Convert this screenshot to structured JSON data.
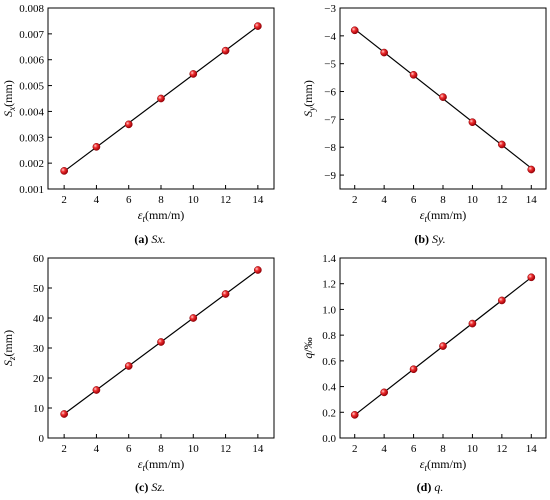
{
  "chart_data": [
    {
      "type": "scatter",
      "caption_letter": "(a)",
      "caption_text": "Sx.",
      "xlabel": "εt(mm/m)",
      "ylabel": "Sx(mm)",
      "xlim": [
        1,
        15
      ],
      "ylim": [
        0.001,
        0.008
      ],
      "xticks": [
        2,
        4,
        6,
        8,
        10,
        12,
        14
      ],
      "yticks": [
        0.001,
        0.002,
        0.003,
        0.004,
        0.005,
        0.006,
        0.007,
        0.008
      ],
      "ytick_labels": [
        "0.001",
        "0.002",
        "0.003",
        "0.004",
        "0.005",
        "0.006",
        "0.007",
        "0.008"
      ],
      "x": [
        2,
        4,
        6,
        8,
        10,
        12,
        14
      ],
      "y": [
        0.0017,
        0.00263,
        0.0035,
        0.0045,
        0.00545,
        0.00635,
        0.0073
      ],
      "trendline": true,
      "marker_color": "#e8141e",
      "line_color": "#000000"
    },
    {
      "type": "scatter",
      "caption_letter": "(b)",
      "caption_text": "Sy.",
      "xlabel": "εt(mm/m)",
      "ylabel": "Sy(mm)",
      "xlim": [
        1,
        15
      ],
      "ylim": [
        -9.5,
        -3
      ],
      "xticks": [
        2,
        4,
        6,
        8,
        10,
        12,
        14
      ],
      "yticks": [
        -3,
        -4,
        -5,
        -6,
        -7,
        -8,
        -9
      ],
      "ytick_labels": [
        "−3",
        "−4",
        "−5",
        "−6",
        "−7",
        "−8",
        "−9"
      ],
      "x": [
        2,
        4,
        6,
        8,
        10,
        12,
        14
      ],
      "y": [
        -3.8,
        -4.6,
        -5.4,
        -6.2,
        -7.1,
        -7.9,
        -8.8
      ],
      "trendline": true,
      "marker_color": "#e8141e",
      "line_color": "#000000"
    },
    {
      "type": "scatter",
      "caption_letter": "(c)",
      "caption_text": "Sz.",
      "xlabel": "εt(mm/m)",
      "ylabel": "Sz(mm)",
      "xlim": [
        1,
        15
      ],
      "ylim": [
        0,
        60
      ],
      "xticks": [
        2,
        4,
        6,
        8,
        10,
        12,
        14
      ],
      "yticks": [
        0,
        10,
        20,
        30,
        40,
        50,
        60
      ],
      "ytick_labels": [
        "0",
        "10",
        "20",
        "30",
        "40",
        "50",
        "60"
      ],
      "x": [
        2,
        4,
        6,
        8,
        10,
        12,
        14
      ],
      "y": [
        8,
        16,
        24,
        32,
        40,
        48,
        56
      ],
      "trendline": true,
      "marker_color": "#e8141e",
      "line_color": "#000000"
    },
    {
      "type": "scatter",
      "caption_letter": "(d)",
      "caption_text": "q.",
      "xlabel": "εt(mm/m)",
      "ylabel": "q/‰",
      "xlim": [
        1,
        15
      ],
      "ylim": [
        0,
        1.4
      ],
      "xticks": [
        2,
        4,
        6,
        8,
        10,
        12,
        14
      ],
      "yticks": [
        0,
        0.2,
        0.4,
        0.6,
        0.8,
        1.0,
        1.2,
        1.4
      ],
      "ytick_labels": [
        "0.0",
        "0.2",
        "0.4",
        "0.6",
        "0.8",
        "1.0",
        "1.2",
        "1.4"
      ],
      "x": [
        2,
        4,
        6,
        8,
        10,
        12,
        14
      ],
      "y": [
        0.18,
        0.355,
        0.535,
        0.715,
        0.89,
        1.07,
        1.25
      ],
      "trendline": true,
      "marker_color": "#e8141e",
      "line_color": "#000000"
    }
  ]
}
